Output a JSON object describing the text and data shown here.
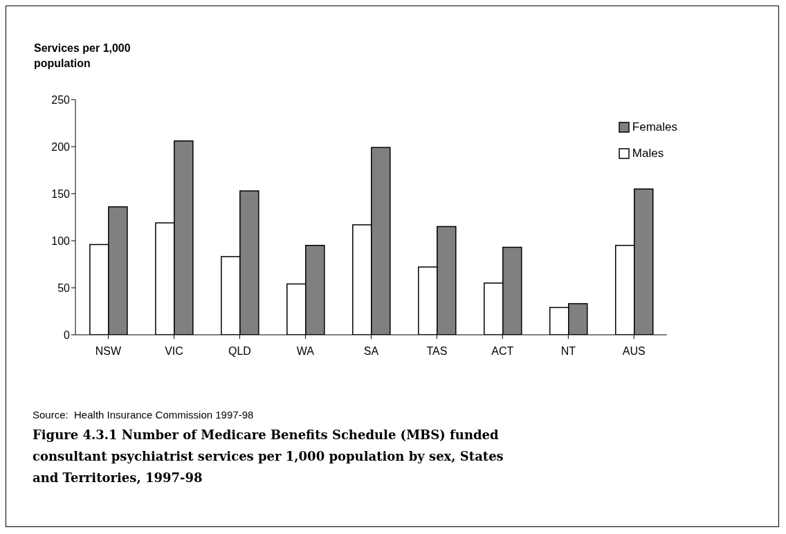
{
  "chart_data": {
    "type": "bar",
    "title": "Figure 4.3.1 Number of Medicare Benefits Schedule (MBS) funded consultant psychiatrist services per 1,000 population by sex, States and Territories, 1997-98",
    "ylabel": "Services per 1,000 population",
    "annotations": [
      "Source:  Health Insurance Commission 1997-98"
    ],
    "categories": [
      "NSW",
      "VIC",
      "QLD",
      "WA",
      "SA",
      "TAS",
      "ACT",
      "NT",
      "AUS"
    ],
    "series": [
      {
        "name": "Males",
        "color": "#ffffff",
        "values": [
          96,
          119,
          83,
          54,
          117,
          72,
          55,
          29,
          95
        ]
      },
      {
        "name": "Females",
        "color": "#808080",
        "values": [
          136,
          206,
          153,
          95,
          199,
          115,
          93,
          33,
          155
        ]
      }
    ],
    "ylim": [
      0,
      250
    ],
    "yticks": [
      0,
      50,
      100,
      150,
      200,
      250
    ],
    "grid": false,
    "legend": "top right"
  }
}
